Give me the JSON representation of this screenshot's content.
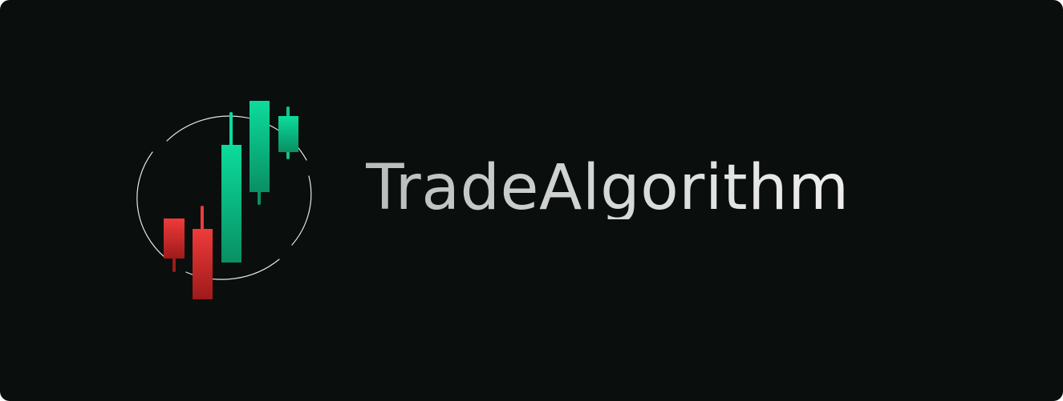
{
  "brand": {
    "name": "TradeAlgorithm"
  },
  "logo": {
    "icon": "candlestick-chart-icon",
    "colors": {
      "bull_top": "#0bdc9c",
      "bull_bottom": "#0a8f63",
      "bear_top": "#ef3b3b",
      "bear_bottom": "#9f1a1a",
      "ring": "#e6e6e6"
    }
  },
  "background": "#0a0f0d"
}
